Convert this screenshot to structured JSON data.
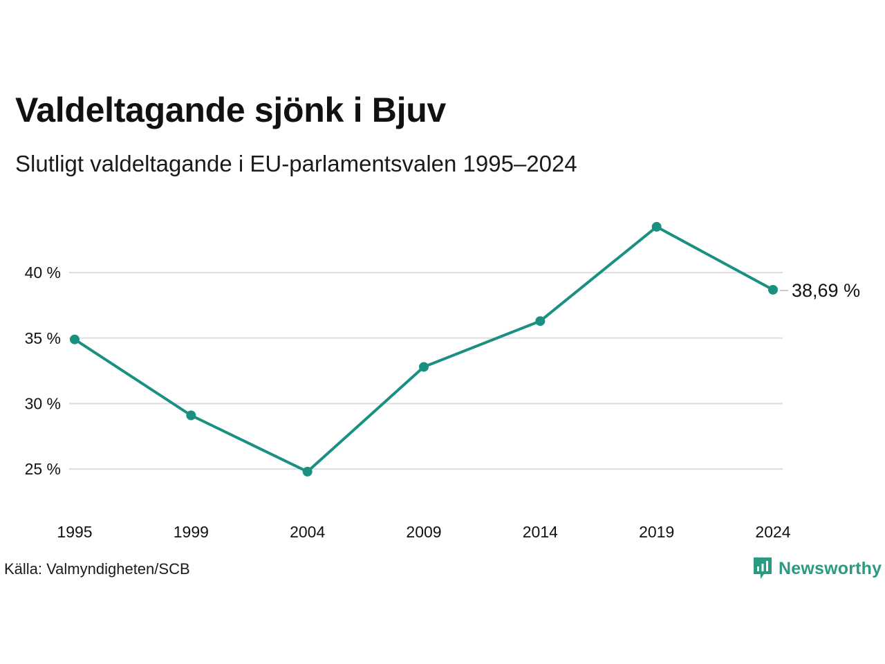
{
  "title": "Valdeltagande sjönk i Bjuv",
  "subtitle": "Slutligt valdeltagande i EU-parlamentsvalen 1995–2024",
  "source": "Källa: Valmyndigheten/SCB",
  "brand": {
    "name": "Newsworthy",
    "icon": "newsworthy-logo-icon"
  },
  "colors": {
    "line": "#1a9080",
    "grid": "#dddddd",
    "text": "#111111",
    "brand": "#2a9a82"
  },
  "chart_data": {
    "type": "line",
    "title": "Valdeltagande sjönk i Bjuv",
    "subtitle": "Slutligt valdeltagande i EU-parlamentsvalen 1995–2024",
    "x": [
      "1995",
      "1999",
      "2004",
      "2009",
      "2014",
      "2019",
      "2024"
    ],
    "series": [
      {
        "values": [
          34.9,
          29.1,
          24.8,
          32.8,
          36.3,
          43.5,
          38.69
        ]
      }
    ],
    "y_ticks": [
      25,
      30,
      35,
      40
    ],
    "y_tick_labels": [
      "25 %",
      "30 %",
      "35 %",
      "40 %"
    ],
    "ylim": [
      23.5,
      45
    ],
    "grid": true,
    "last_value_label": "38,69 %",
    "xlabel": "",
    "ylabel": ""
  }
}
